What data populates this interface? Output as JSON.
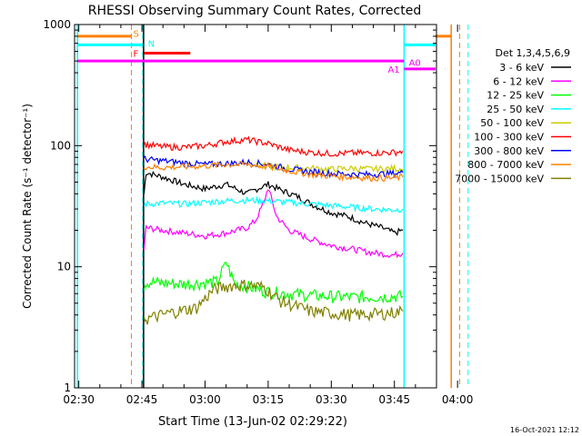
{
  "chart_data": {
    "type": "line",
    "title": "RHESSI Observing Summary Count Rates, Corrected",
    "xlabel": "Start Time (13-Jun-02 02:29:22)",
    "ylabel": "Corrected Count Rate (s⁻¹ detector⁻¹)",
    "y_scale": "log",
    "ylim": [
      1,
      1000
    ],
    "xlim_minutes": [
      -1,
      85
    ],
    "x_ticks": [
      {
        "m": 0,
        "label": "02:30"
      },
      {
        "m": 15,
        "label": "02:45"
      },
      {
        "m": 30,
        "label": "03:00"
      },
      {
        "m": 45,
        "label": "03:15"
      },
      {
        "m": 60,
        "label": "03:30"
      },
      {
        "m": 75,
        "label": "03:45"
      },
      {
        "m": 90,
        "label": "04:00"
      }
    ],
    "y_ticks": [
      {
        "v": 1,
        "label": "1"
      },
      {
        "v": 10,
        "label": "10"
      },
      {
        "v": 100,
        "label": "100"
      },
      {
        "v": 1000,
        "label": "1000"
      }
    ],
    "legend": {
      "title": "Det 1,3,4,5,6,9",
      "position": "right"
    },
    "series": [
      {
        "name": "3 - 6 keV",
        "color": "#000000",
        "x": [
          15.5,
          16,
          20,
          25,
          30,
          35,
          40,
          43,
          45,
          48,
          52,
          56,
          60,
          64,
          68,
          72,
          75,
          77
        ],
        "values": [
          40,
          60,
          55,
          48,
          44,
          48,
          40,
          45,
          48,
          43,
          38,
          32,
          28,
          26,
          23,
          21,
          19,
          20
        ]
      },
      {
        "name": "6 - 12 keV",
        "color": "#ff00ff",
        "x": [
          15.5,
          16,
          20,
          25,
          30,
          35,
          40,
          42,
          44,
          45,
          47,
          50,
          55,
          60,
          65,
          70,
          75,
          77
        ],
        "values": [
          14,
          21,
          20,
          19,
          18,
          19,
          21,
          24,
          34,
          45,
          26,
          20,
          17,
          15,
          14,
          13,
          12.5,
          13
        ]
      },
      {
        "name": "12 - 25 keV",
        "color": "#00ff00",
        "x": [
          15.5,
          16,
          25,
          33,
          35,
          37,
          45,
          55,
          65,
          75,
          77
        ],
        "values": [
          7,
          7.5,
          7.2,
          7.5,
          11,
          7.3,
          6.2,
          5.8,
          5.6,
          5.7,
          5.7
        ]
      },
      {
        "name": "25 - 50 keV",
        "color": "#00ffff",
        "x": [
          15.5,
          16,
          20,
          25,
          30,
          35,
          40,
          45,
          50,
          55,
          60,
          65,
          70,
          75,
          77
        ],
        "values": [
          32,
          33,
          33.5,
          33,
          34,
          35,
          35.5,
          35,
          34,
          33,
          32,
          31,
          30,
          29.5,
          30
        ]
      },
      {
        "name": "50 - 100 keV",
        "color": "#cccc00",
        "x": [
          42,
          45,
          50,
          55,
          60,
          65,
          70,
          75,
          77
        ],
        "values": [
          68,
          68,
          66,
          65,
          64,
          65,
          64,
          65,
          64
        ]
      },
      {
        "name": "100 - 300 keV",
        "color": "#ff0000",
        "x": [
          15.5,
          16,
          20,
          25,
          30,
          35,
          40,
          45,
          50,
          55,
          60,
          65,
          70,
          75,
          77
        ],
        "values": [
          104,
          102,
          98,
          97,
          100,
          108,
          112,
          104,
          92,
          88,
          86,
          87,
          87,
          88,
          90
        ]
      },
      {
        "name": "300 - 800 keV",
        "color": "#0000ff",
        "x": [
          15.5,
          16,
          20,
          25,
          30,
          35,
          40,
          45,
          50,
          55,
          60,
          65,
          70,
          75,
          77
        ],
        "values": [
          78,
          77,
          75,
          72,
          70,
          71,
          73,
          70,
          64,
          61,
          59,
          58,
          58,
          59,
          60
        ]
      },
      {
        "name": "800 - 7000 keV",
        "color": "#ff8000",
        "x": [
          15.5,
          16,
          20,
          25,
          30,
          35,
          40,
          45,
          50,
          55,
          60,
          65,
          70,
          75,
          77
        ],
        "values": [
          67,
          67,
          66,
          67,
          68,
          70,
          70,
          67,
          62,
          58,
          56,
          55,
          54,
          54,
          55
        ]
      },
      {
        "name": "7000 - 15000 keV",
        "color": "#808000",
        "x": [
          15.5,
          16,
          22,
          28,
          32,
          36,
          40,
          44,
          48,
          55,
          65,
          72,
          75,
          77
        ],
        "values": [
          4,
          3.7,
          4.2,
          4.6,
          6.5,
          7.0,
          7.1,
          6.8,
          5.2,
          4.3,
          4.0,
          4.1,
          4.2,
          4.3
        ]
      }
    ],
    "annotations": {
      "dashed_lines": [
        {
          "m": 12.5,
          "color": "#ff8000"
        },
        {
          "m": 15.2,
          "color": "#00ffff"
        },
        {
          "m": 90.5,
          "color": "#ff8000"
        },
        {
          "m": 92.5,
          "color": "#00ffff"
        }
      ],
      "solid_lines": [
        {
          "m": -0.3,
          "color": "#00ffff"
        },
        {
          "m": 15.4,
          "color": "#000000"
        },
        {
          "m": 77.3,
          "color": "#00ffff"
        },
        {
          "m": 88.5,
          "color": "#ff8000"
        }
      ],
      "status_bars": [
        {
          "label": "S",
          "color": "#ff8000",
          "start": -0.3,
          "end": 12.5,
          "y": 800,
          "label_at": 12.5,
          "label_y": 850
        },
        {
          "label": "S",
          "color": "#ff8000",
          "start": 88.5,
          "end": 92.5,
          "y": 800
        },
        {
          "label": "N",
          "color": "#00ffff",
          "start": -0.3,
          "end": 15.2,
          "y": 680,
          "label_at": 16,
          "label_y": 700
        },
        {
          "label": "N",
          "color": "#00ffff",
          "start": 77.3,
          "end": 92.5,
          "y": 680
        },
        {
          "label": "F",
          "color": "#ff0000",
          "start": 15.5,
          "end": 26.5,
          "y": 580,
          "label_at": 12.5,
          "label_y": 580
        },
        {
          "label": "A1",
          "color": "#ff00ff",
          "start": -0.3,
          "end": 77.3,
          "y": 500,
          "label_at": 73,
          "label_y": 430
        },
        {
          "label": "A0",
          "color": "#ff00ff",
          "start": 77.3,
          "end": 92.5,
          "y": 430,
          "label_at": 78,
          "label_y": 490
        }
      ]
    },
    "footer": "16-Oct-2021 12:12"
  }
}
